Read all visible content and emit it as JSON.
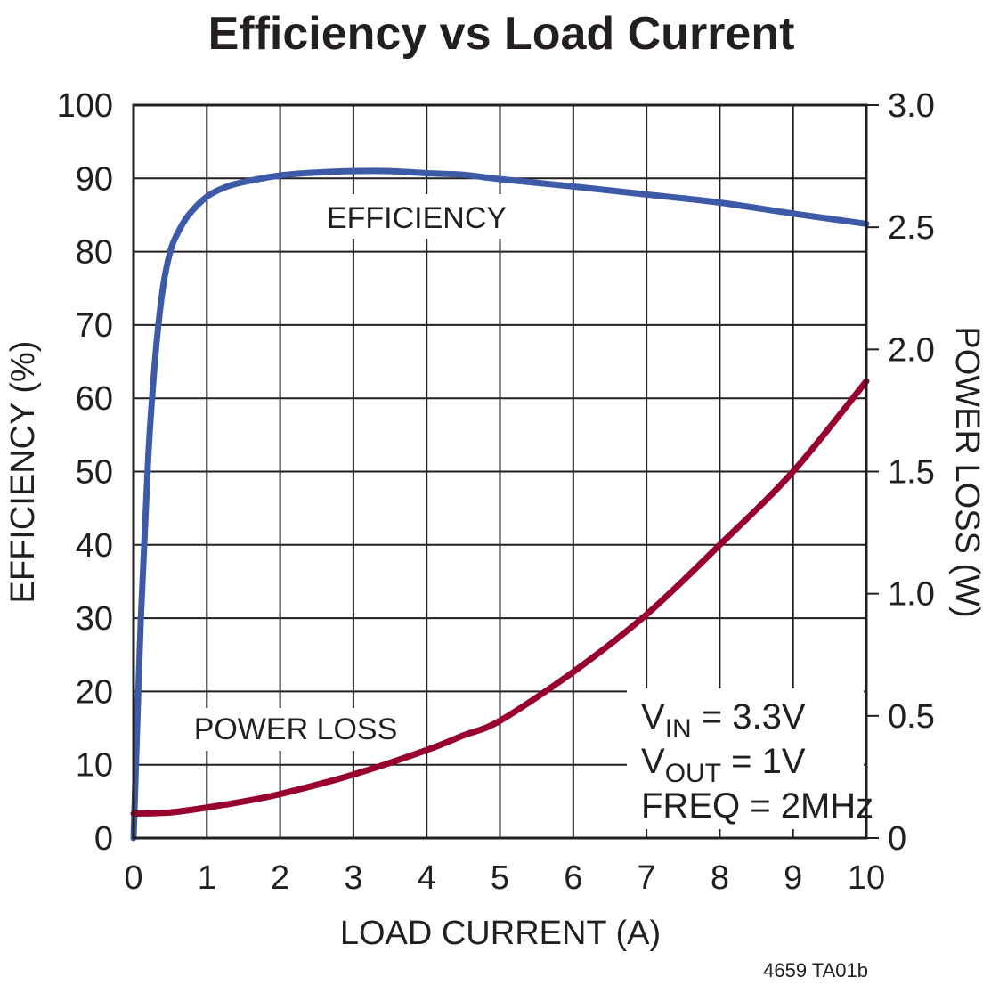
{
  "chart_data": {
    "type": "line",
    "title": "Efficiency vs Load Current",
    "xlabel": "LOAD CURRENT (A)",
    "ylabel_left": "EFFICIENCY (%)",
    "ylabel_right": "POWER LOSS (W)",
    "xlim": [
      0,
      10
    ],
    "ylim_left": [
      0,
      100
    ],
    "ylim_right": [
      0,
      3.0
    ],
    "x_ticks": [
      "0",
      "1",
      "2",
      "3",
      "4",
      "5",
      "6",
      "7",
      "8",
      "9",
      "10"
    ],
    "y_left_ticks": [
      "0",
      "10",
      "20",
      "30",
      "40",
      "50",
      "60",
      "70",
      "80",
      "90",
      "100"
    ],
    "y_right_ticks": [
      "0",
      "0.5",
      "1.0",
      "1.5",
      "2.0",
      "2.5",
      "3.0"
    ],
    "grid": true,
    "series": [
      {
        "name": "EFFICIENCY",
        "axis": "left",
        "color": "#3d5aa8",
        "x": [
          0,
          0.1,
          0.2,
          0.3,
          0.4,
          0.5,
          0.6,
          0.75,
          1.0,
          1.25,
          1.5,
          2.0,
          2.5,
          3.0,
          3.5,
          4.0,
          4.5,
          5.0,
          6.0,
          7.0,
          8.0,
          9.0,
          10.0
        ],
        "values": [
          0,
          30,
          52,
          66,
          75,
          80,
          82.5,
          85,
          87.5,
          88.8,
          89.5,
          90.4,
          90.8,
          91.0,
          91.0,
          90.7,
          90.5,
          89.9,
          88.9,
          87.8,
          86.7,
          85.2,
          83.8
        ]
      },
      {
        "name": "POWER LOSS",
        "axis": "right",
        "color": "#98002e",
        "x": [
          0,
          0.5,
          1.0,
          1.5,
          2.0,
          3.0,
          4.0,
          4.5,
          5.0,
          6.0,
          7.0,
          8.0,
          9.0,
          10.0
        ],
        "values": [
          0.1,
          0.105,
          0.125,
          0.15,
          0.18,
          0.26,
          0.36,
          0.42,
          0.48,
          0.68,
          0.915,
          1.2,
          1.5,
          1.87
        ]
      }
    ],
    "annotations": {
      "efficiency_label": "EFFICIENCY",
      "power_loss_label": "POWER LOSS",
      "conditions": [
        {
          "main": "V",
          "sub": "IN",
          "rest": " = 3.3V"
        },
        {
          "main": "V",
          "sub": "OUT",
          "rest": " = 1V"
        },
        {
          "main": "FREQ = 2MHz",
          "sub": "",
          "rest": ""
        }
      ]
    },
    "figure_code": "4659 TA01b"
  }
}
